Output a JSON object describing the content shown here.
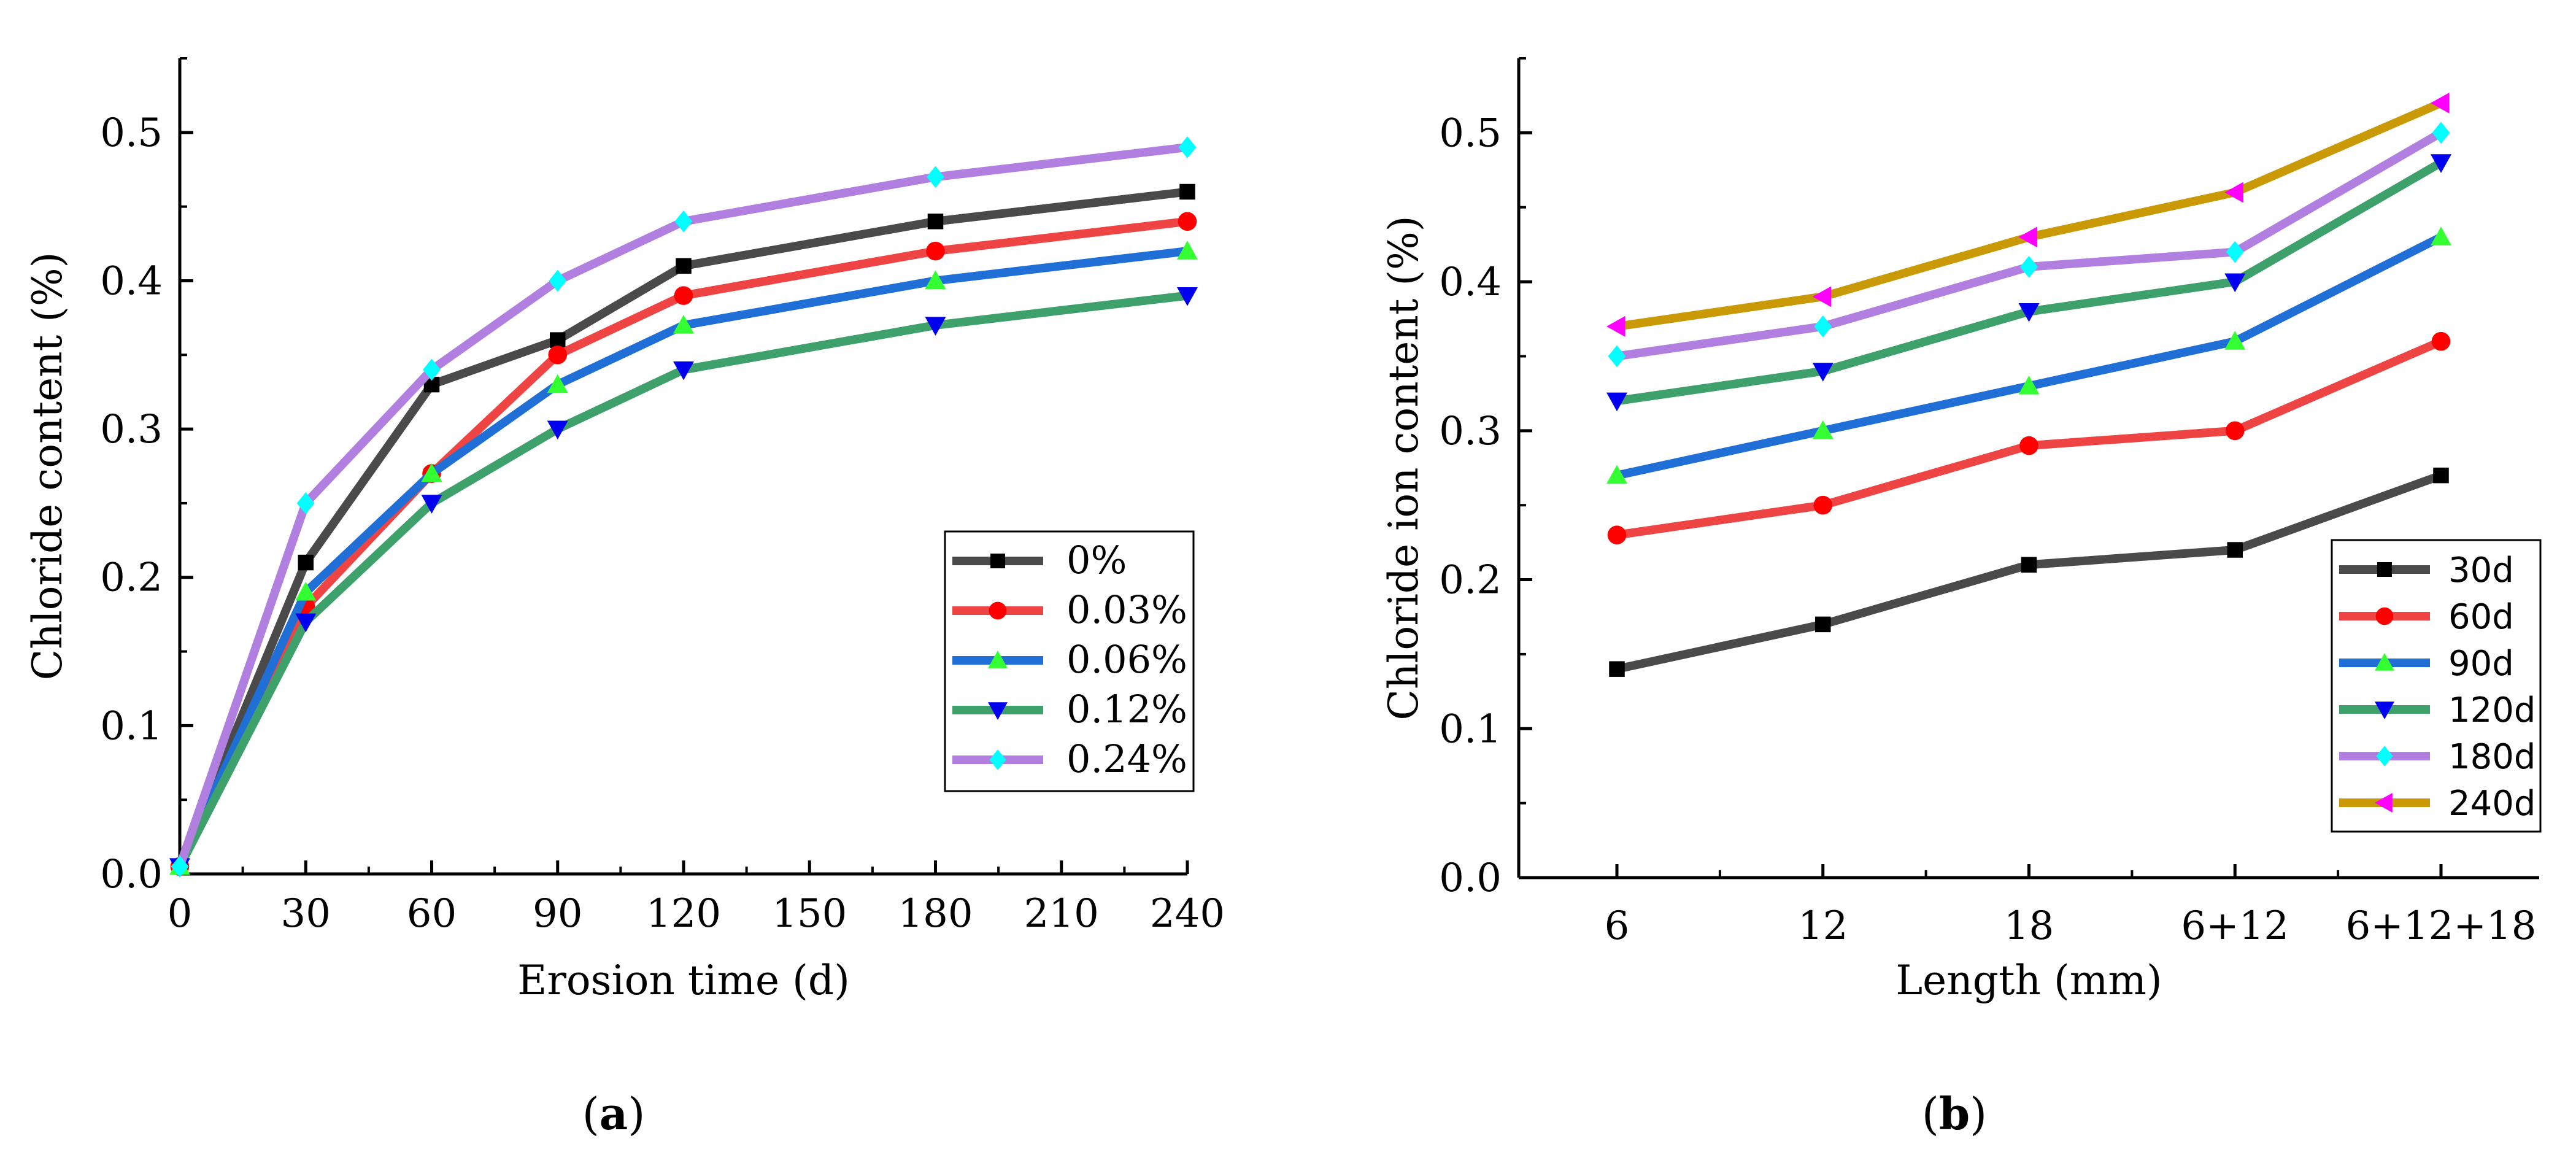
{
  "chart_data": [
    {
      "id": "a",
      "type": "line",
      "panel_label_open": "(",
      "panel_label_letter": "a",
      "panel_label_close": ")",
      "xlabel": "Erosion time (d)",
      "ylabel": "Chloride content (%)",
      "xlim": [
        0,
        240
      ],
      "ylim": [
        0,
        0.55
      ],
      "x_ticks": [
        0,
        30,
        60,
        90,
        120,
        150,
        180,
        210,
        240
      ],
      "x_tick_labels": [
        "0",
        "30",
        "60",
        "90",
        "120",
        "150",
        "180",
        "210",
        "240"
      ],
      "y_ticks": [
        0,
        0.1,
        0.2,
        0.3,
        0.4,
        0.5
      ],
      "y_tick_labels": [
        "0.0",
        "0.1",
        "0.2",
        "0.3",
        "0.4",
        "0.5"
      ],
      "x": [
        0,
        30,
        60,
        90,
        120,
        180,
        240
      ],
      "legend_position": "lower-right",
      "series": [
        {
          "name": "0%",
          "color": "#4a4a4a",
          "marker": "square",
          "marker_color": "#000000",
          "values": [
            0.005,
            0.21,
            0.33,
            0.36,
            0.41,
            0.44,
            0.46
          ]
        },
        {
          "name": "0.03%",
          "color": "#ef4444",
          "marker": "circle",
          "marker_color": "#ff0000",
          "values": [
            0.005,
            0.18,
            0.27,
            0.35,
            0.39,
            0.42,
            0.44
          ]
        },
        {
          "name": "0.06%",
          "color": "#1f6fd6",
          "marker": "triangle-up",
          "marker_color": "#33ff33",
          "values": [
            0.005,
            0.19,
            0.27,
            0.33,
            0.37,
            0.4,
            0.42
          ]
        },
        {
          "name": "0.12%",
          "color": "#3ea06a",
          "marker": "triangle-down",
          "marker_color": "#0000ee",
          "values": [
            0.005,
            0.17,
            0.25,
            0.3,
            0.34,
            0.37,
            0.39
          ]
        },
        {
          "name": "0.24%",
          "color": "#b17fe0",
          "marker": "diamond",
          "marker_color": "#00ffff",
          "values": [
            0.005,
            0.25,
            0.34,
            0.4,
            0.44,
            0.47,
            0.49
          ]
        }
      ]
    },
    {
      "id": "b",
      "type": "line",
      "panel_label_open": "(",
      "panel_label_letter": "b",
      "panel_label_close": ")",
      "xlabel": "Length (mm)",
      "ylabel": "Chloride ion content (%)",
      "ylim": [
        0,
        0.55
      ],
      "categories": [
        "6",
        "12",
        "18",
        "6+12",
        "6+12+18"
      ],
      "y_ticks": [
        0,
        0.1,
        0.2,
        0.3,
        0.4,
        0.5
      ],
      "y_tick_labels": [
        "0.0",
        "0.1",
        "0.2",
        "0.3",
        "0.4",
        "0.5"
      ],
      "legend_position": "lower-right",
      "series": [
        {
          "name": "30d",
          "color": "#4a4a4a",
          "marker": "square",
          "marker_color": "#000000",
          "values": [
            0.14,
            0.17,
            0.21,
            0.22,
            0.27
          ]
        },
        {
          "name": "60d",
          "color": "#ef4444",
          "marker": "circle",
          "marker_color": "#ff0000",
          "values": [
            0.23,
            0.25,
            0.29,
            0.3,
            0.36
          ]
        },
        {
          "name": "90d",
          "color": "#1f6fd6",
          "marker": "triangle-up",
          "marker_color": "#33ff33",
          "values": [
            0.27,
            0.3,
            0.33,
            0.36,
            0.43
          ]
        },
        {
          "name": "120d",
          "color": "#3ea06a",
          "marker": "triangle-down",
          "marker_color": "#0000ee",
          "values": [
            0.32,
            0.34,
            0.38,
            0.4,
            0.48
          ]
        },
        {
          "name": "180d",
          "color": "#b17fe0",
          "marker": "diamond",
          "marker_color": "#00ffff",
          "values": [
            0.35,
            0.37,
            0.41,
            0.42,
            0.5
          ]
        },
        {
          "name": "240d",
          "color": "#c99a06",
          "marker": "triangle-left",
          "marker_color": "#ff00ff",
          "values": [
            0.37,
            0.39,
            0.43,
            0.46,
            0.52
          ]
        }
      ]
    }
  ]
}
